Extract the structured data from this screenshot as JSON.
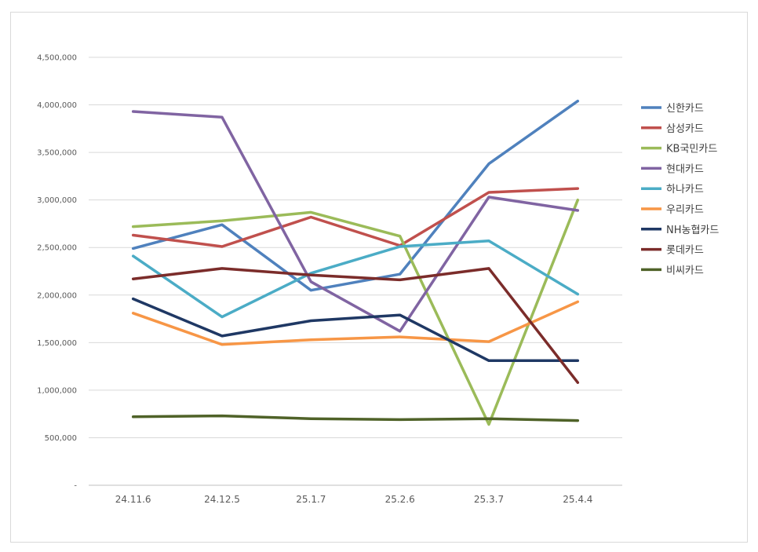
{
  "chart_data": {
    "type": "line",
    "title": "",
    "xlabel": "",
    "ylabel": "",
    "ylim": [
      0,
      4500000
    ],
    "y_ticks": [
      {
        "value": 0,
        "label": "-"
      },
      {
        "value": 500000,
        "label": "500,000"
      },
      {
        "value": 1000000,
        "label": "1,000,000"
      },
      {
        "value": 1500000,
        "label": "1,500,000"
      },
      {
        "value": 2000000,
        "label": "2,000,000"
      },
      {
        "value": 2500000,
        "label": "2,500,000"
      },
      {
        "value": 3000000,
        "label": "3,000,000"
      },
      {
        "value": 3500000,
        "label": "3,500,000"
      },
      {
        "value": 4000000,
        "label": "4,000,000"
      },
      {
        "value": 4500000,
        "label": "4,500,000"
      }
    ],
    "categories": [
      "24.11.6",
      "24.12.5",
      "25.1.7",
      "25.2.6",
      "25.3.7",
      "25.4.4"
    ],
    "grid": true,
    "legend_position": "right",
    "series": [
      {
        "name": "신한카드",
        "color": "#4f81bd",
        "values": [
          2490000,
          2740000,
          2050000,
          2220000,
          3380000,
          4040000
        ]
      },
      {
        "name": "삼성카드",
        "color": "#c0504d",
        "values": [
          2630000,
          2510000,
          2820000,
          2520000,
          3080000,
          3120000
        ]
      },
      {
        "name": "KB국민카드",
        "color": "#9bbb59",
        "values": [
          2720000,
          2780000,
          2870000,
          2620000,
          640000,
          3000000
        ]
      },
      {
        "name": "현대카드",
        "color": "#8064a2",
        "values": [
          3930000,
          3870000,
          2140000,
          1620000,
          3030000,
          2890000
        ]
      },
      {
        "name": "하나카드",
        "color": "#4bacc6",
        "values": [
          2410000,
          1770000,
          2230000,
          2510000,
          2570000,
          2010000
        ]
      },
      {
        "name": "우리카드",
        "color": "#f79646",
        "values": [
          1810000,
          1480000,
          1530000,
          1560000,
          1510000,
          1930000
        ]
      },
      {
        "name": "NH농협카드",
        "color": "#1f3864",
        "values": [
          1960000,
          1570000,
          1730000,
          1790000,
          1310000,
          1310000
        ]
      },
      {
        "name": "롯데카드",
        "color": "#7b2c2a",
        "values": [
          2170000,
          2280000,
          2210000,
          2160000,
          2280000,
          1080000
        ]
      },
      {
        "name": "비씨카드",
        "color": "#4f6228",
        "values": [
          720000,
          730000,
          700000,
          690000,
          700000,
          680000
        ]
      }
    ]
  }
}
